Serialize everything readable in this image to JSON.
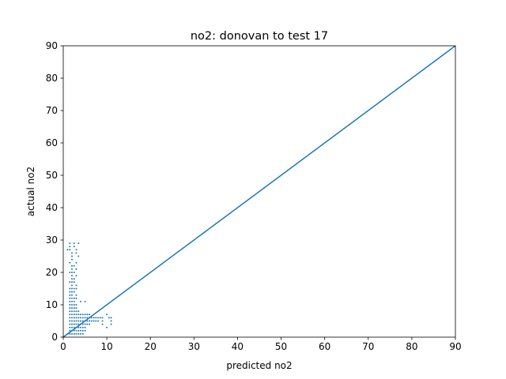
{
  "chart_data": {
    "type": "scatter",
    "title": "no2: donovan to test 17",
    "xlabel": "predicted no2",
    "ylabel": "actual no2",
    "xlim": [
      0,
      90
    ],
    "ylim": [
      0,
      90
    ],
    "xticks": [
      "0",
      "10",
      "20",
      "30",
      "40",
      "50",
      "60",
      "70",
      "80",
      "90"
    ],
    "yticks": [
      "0",
      "10",
      "20",
      "30",
      "40",
      "50",
      "60",
      "70",
      "80",
      "90"
    ],
    "grid": false,
    "series_color": "#1f77b4",
    "reference_line": {
      "x": [
        0,
        90
      ],
      "y": [
        0,
        90
      ]
    },
    "points": [
      [
        1.5,
        29
      ],
      [
        2.5,
        29
      ],
      [
        3.5,
        29
      ],
      [
        1.5,
        28
      ],
      [
        2.5,
        28
      ],
      [
        1.5,
        27
      ],
      [
        3,
        27
      ],
      [
        1,
        27
      ],
      [
        2,
        26
      ],
      [
        3,
        26
      ],
      [
        2,
        25
      ],
      [
        3.5,
        25
      ],
      [
        2,
        24
      ],
      [
        1.5,
        23
      ],
      [
        3,
        23
      ],
      [
        2,
        22
      ],
      [
        2.5,
        22
      ],
      [
        2,
        21
      ],
      [
        3,
        21
      ],
      [
        1.5,
        20
      ],
      [
        2,
        20
      ],
      [
        2.5,
        20
      ],
      [
        2,
        19
      ],
      [
        3,
        19
      ],
      [
        2,
        18
      ],
      [
        2.5,
        18
      ],
      [
        1.5,
        17
      ],
      [
        2,
        17
      ],
      [
        2.5,
        17
      ],
      [
        2,
        16
      ],
      [
        3,
        16
      ],
      [
        1.5,
        15
      ],
      [
        2,
        15
      ],
      [
        2.5,
        15
      ],
      [
        3,
        15
      ],
      [
        1.5,
        14
      ],
      [
        2,
        14
      ],
      [
        2.5,
        14
      ],
      [
        1.5,
        13
      ],
      [
        2,
        13
      ],
      [
        3,
        13
      ],
      [
        1.5,
        12
      ],
      [
        2,
        12
      ],
      [
        2.5,
        12
      ],
      [
        3,
        12
      ],
      [
        1.5,
        11
      ],
      [
        2,
        11
      ],
      [
        2.5,
        11
      ],
      [
        4,
        11
      ],
      [
        5,
        11
      ],
      [
        1.5,
        10
      ],
      [
        2,
        10
      ],
      [
        2.5,
        10
      ],
      [
        3,
        10
      ],
      [
        1.5,
        9
      ],
      [
        2,
        9
      ],
      [
        2.5,
        9
      ],
      [
        3,
        9
      ],
      [
        1.5,
        8
      ],
      [
        2,
        8
      ],
      [
        2.5,
        8
      ],
      [
        3,
        8
      ],
      [
        3.5,
        8
      ],
      [
        1.5,
        7
      ],
      [
        2,
        7
      ],
      [
        2.5,
        7
      ],
      [
        3,
        7
      ],
      [
        3.5,
        7
      ],
      [
        4,
        7
      ],
      [
        4.5,
        7
      ],
      [
        5,
        7
      ],
      [
        5.5,
        7
      ],
      [
        6,
        7
      ],
      [
        10,
        7
      ],
      [
        1.5,
        6
      ],
      [
        2,
        6
      ],
      [
        2.5,
        6
      ],
      [
        3,
        6
      ],
      [
        3.5,
        6
      ],
      [
        4,
        6
      ],
      [
        4.5,
        6
      ],
      [
        5,
        6
      ],
      [
        5.5,
        6
      ],
      [
        6,
        6
      ],
      [
        6.5,
        6
      ],
      [
        7,
        6
      ],
      [
        7.5,
        6
      ],
      [
        8,
        6
      ],
      [
        8.5,
        6
      ],
      [
        9,
        6
      ],
      [
        10.5,
        6
      ],
      [
        11,
        6
      ],
      [
        1.5,
        5
      ],
      [
        2,
        5
      ],
      [
        2.5,
        5
      ],
      [
        3,
        5
      ],
      [
        3.5,
        5
      ],
      [
        4,
        5
      ],
      [
        4.5,
        5
      ],
      [
        5,
        5
      ],
      [
        5.5,
        5
      ],
      [
        6,
        5
      ],
      [
        6.5,
        5
      ],
      [
        7,
        5
      ],
      [
        7.5,
        5
      ],
      [
        8,
        5
      ],
      [
        9,
        5
      ],
      [
        11,
        5
      ],
      [
        1.5,
        4
      ],
      [
        2,
        4
      ],
      [
        2.5,
        4
      ],
      [
        3,
        4
      ],
      [
        3.5,
        4
      ],
      [
        4,
        4
      ],
      [
        4.5,
        4
      ],
      [
        5,
        4
      ],
      [
        5.5,
        4
      ],
      [
        6,
        4
      ],
      [
        9,
        4
      ],
      [
        11,
        4
      ],
      [
        1.5,
        3
      ],
      [
        2,
        3
      ],
      [
        2.5,
        3
      ],
      [
        3,
        3
      ],
      [
        3.5,
        3
      ],
      [
        4,
        3
      ],
      [
        4.5,
        3
      ],
      [
        5,
        3
      ],
      [
        10,
        3
      ],
      [
        1.5,
        2
      ],
      [
        2,
        2
      ],
      [
        2.5,
        2
      ],
      [
        3,
        2
      ],
      [
        3.5,
        2
      ],
      [
        4,
        2
      ],
      [
        4.5,
        2
      ],
      [
        5,
        2
      ],
      [
        1,
        1
      ],
      [
        1.5,
        1
      ],
      [
        2,
        1
      ],
      [
        2.5,
        1
      ],
      [
        3,
        1
      ],
      [
        3.5,
        1
      ],
      [
        4,
        1
      ],
      [
        4.5,
        1
      ]
    ]
  }
}
